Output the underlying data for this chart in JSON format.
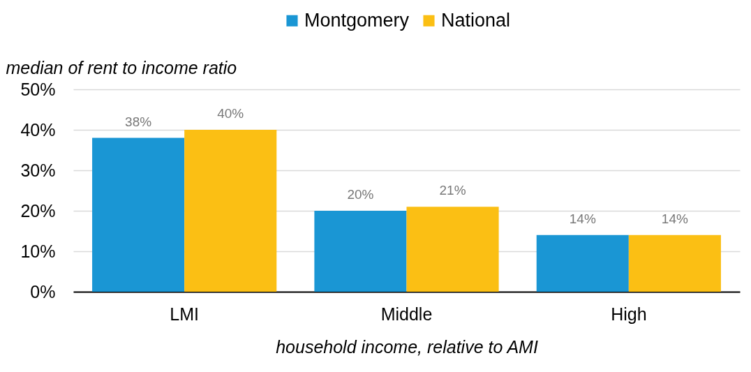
{
  "chart_data": {
    "type": "bar",
    "xlabel": "household income, relative to AMI",
    "ylabel": "median of rent to income ratio",
    "categories": [
      "LMI",
      "Middle",
      "High"
    ],
    "series": [
      {
        "name": "Montgomery",
        "color": "#1a96d4",
        "values": [
          38,
          20,
          14
        ],
        "value_labels": [
          "38%",
          "20%",
          "14%"
        ]
      },
      {
        "name": "National",
        "color": "#fbbf14",
        "values": [
          40,
          21,
          14
        ],
        "value_labels": [
          "40%",
          "21%",
          "14%"
        ]
      }
    ],
    "ylim": [
      0,
      50
    ],
    "yticks": [
      {
        "value": 0,
        "label": "0%"
      },
      {
        "value": 10,
        "label": "10%"
      },
      {
        "value": 20,
        "label": "20%"
      },
      {
        "value": 30,
        "label": "30%"
      },
      {
        "value": 40,
        "label": "40%"
      },
      {
        "value": 50,
        "label": "50%"
      }
    ],
    "grid": "y",
    "legend": "top"
  }
}
